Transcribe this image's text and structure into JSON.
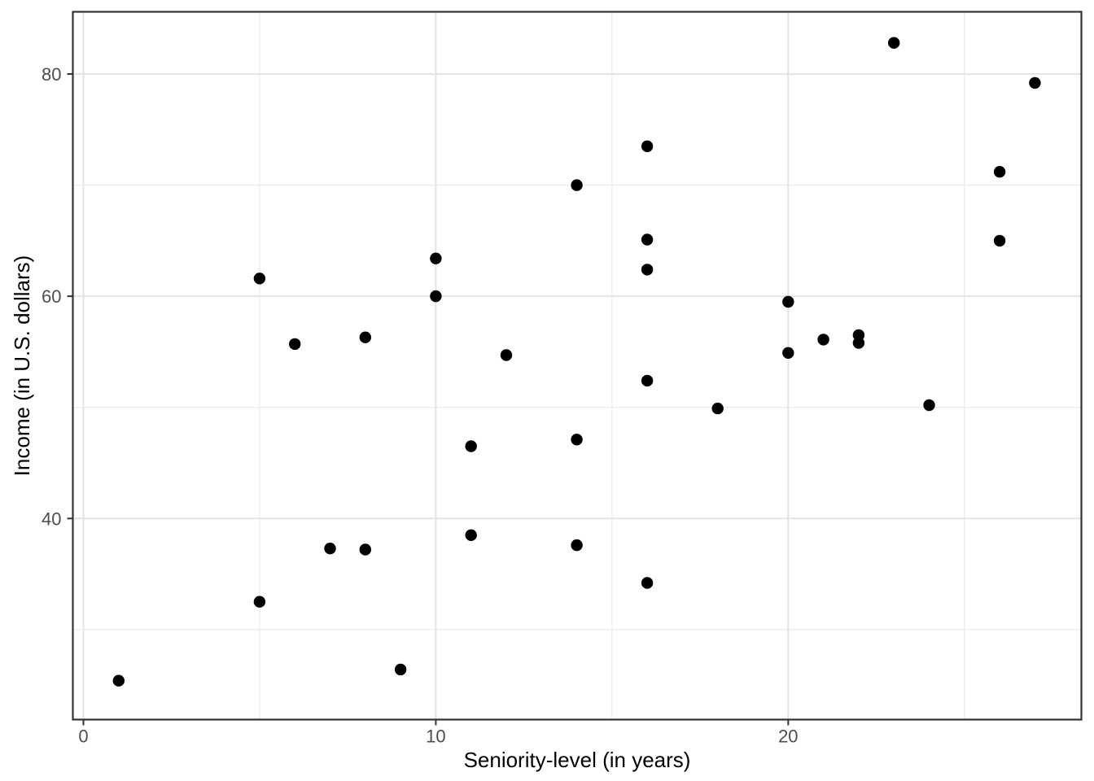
{
  "figure": {
    "background_color": "#FFFFFF"
  },
  "chart_data": {
    "type": "scatter",
    "title": "",
    "xlabel": "Seniority-level (in years)",
    "ylabel": "Income (in U.S. dollars)",
    "x_tick_labels": [
      "0",
      "10",
      "20"
    ],
    "x_ticks": [
      0,
      10,
      20
    ],
    "x_minor_ticks": [
      5,
      15,
      25
    ],
    "y_tick_labels": [
      "40",
      "60",
      "80"
    ],
    "y_ticks": [
      40,
      60,
      80
    ],
    "y_minor_ticks": [
      30,
      50,
      70
    ],
    "xlim": [
      -0.3,
      28.32
    ],
    "ylim": [
      21.9,
      85.6
    ],
    "grid": "major+minor",
    "legend": "none",
    "point_color": "#000000",
    "point_radius_px": 7.2,
    "major_grid_color": "#E3E3E3",
    "minor_grid_color": "#EDEDED",
    "panel_border_color": "#333333",
    "tick_mark_color": "#333333",
    "tick_label_color": "#4D4D4D",
    "axis_title_color": "#000000",
    "points": [
      [
        1,
        25.4
      ],
      [
        5,
        32.5
      ],
      [
        5,
        61.6
      ],
      [
        6,
        55.7
      ],
      [
        7,
        37.3
      ],
      [
        8,
        37.2
      ],
      [
        8,
        56.3
      ],
      [
        9,
        26.4
      ],
      [
        10,
        60.0
      ],
      [
        10,
        63.4
      ],
      [
        11,
        38.5
      ],
      [
        11,
        46.5
      ],
      [
        12,
        54.7
      ],
      [
        14,
        37.6
      ],
      [
        14,
        47.1
      ],
      [
        14,
        70.0
      ],
      [
        16,
        34.2
      ],
      [
        16,
        52.4
      ],
      [
        16,
        62.4
      ],
      [
        16,
        65.1
      ],
      [
        16,
        73.5
      ],
      [
        18,
        49.9
      ],
      [
        20,
        54.9
      ],
      [
        20,
        59.5
      ],
      [
        21,
        56.1
      ],
      [
        22,
        55.8
      ],
      [
        22,
        56.5
      ],
      [
        23,
        82.8
      ],
      [
        24,
        50.2
      ],
      [
        26,
        65.0
      ],
      [
        26,
        71.2
      ],
      [
        27,
        79.2
      ]
    ]
  }
}
